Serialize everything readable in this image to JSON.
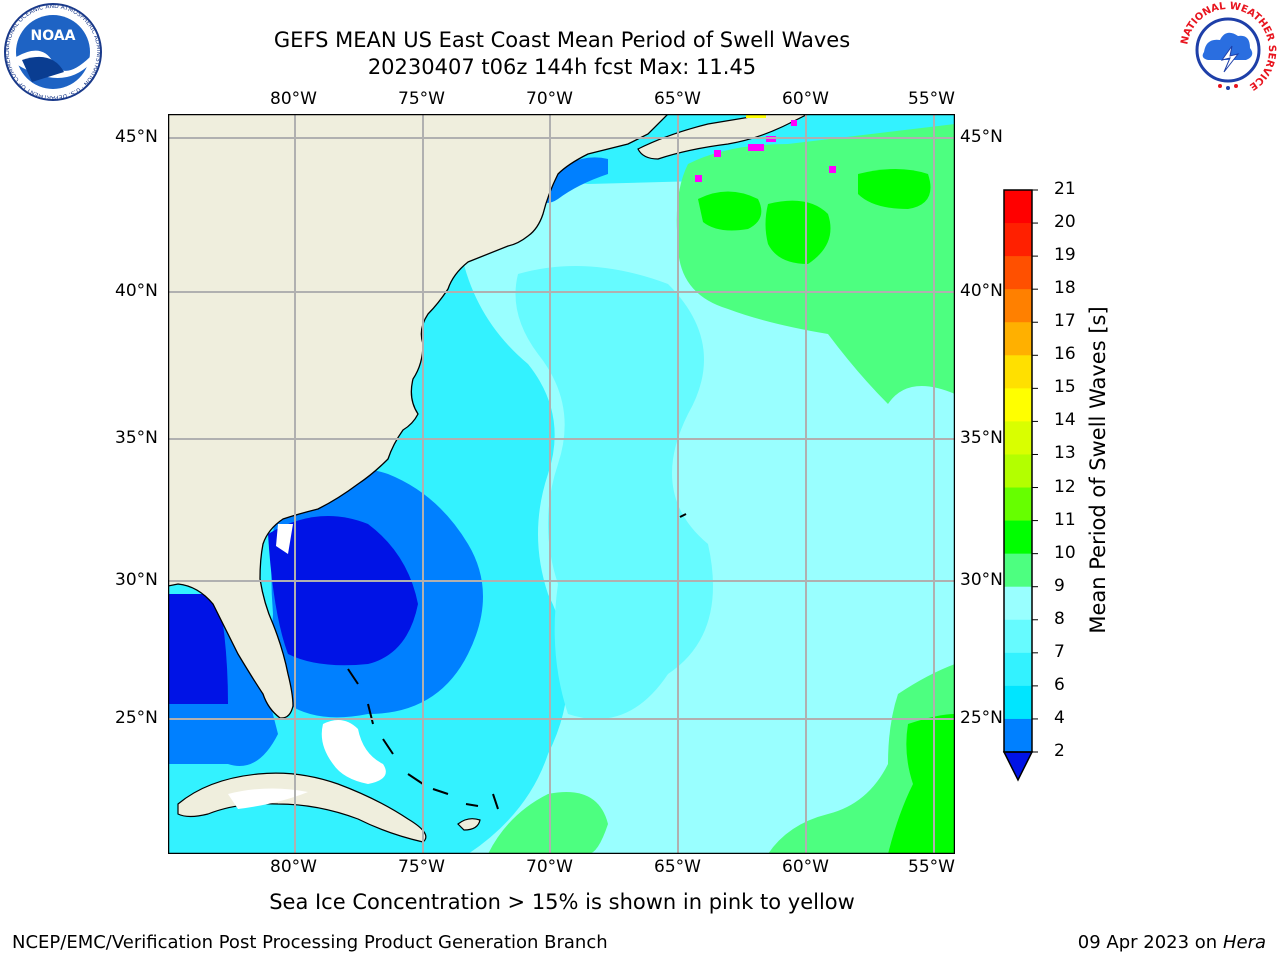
{
  "header": {
    "title_line1": "GEFS MEAN US East Coast Mean Period of Swell Waves",
    "title_line2": "20230407 t06z 144h fcst   Max: 11.45"
  },
  "logos": {
    "noaa_text": "NOAA",
    "noaa_ring_text": "NATIONAL OCEANIC AND ATMOSPHERIC ADMINISTRATION · U.S. DEPARTMENT OF COMMERCE",
    "nws_ring_text": "NATIONAL WEATHER SERVICE"
  },
  "map": {
    "lon_labels": [
      "80°W",
      "75°W",
      "70°W",
      "65°W",
      "60°W",
      "55°W"
    ],
    "lat_labels": [
      "45°N",
      "40°N",
      "35°N",
      "30°N",
      "25°N"
    ],
    "colors": {
      "land": "#efeedd",
      "grid": "#b0b0b0",
      "coast": "#000000",
      "sea_ice": "#ff00ff"
    }
  },
  "colorbar": {
    "title": "Mean Period of Swell Waves [s]",
    "ticks": [
      "2",
      "4",
      "6",
      "7",
      "8",
      "9",
      "10",
      "11",
      "12",
      "13",
      "14",
      "15",
      "16",
      "17",
      "18",
      "19",
      "20",
      "21"
    ],
    "colors": [
      "#0013e6",
      "#0080ff",
      "#00e5ff",
      "#33f2ff",
      "#66fbff",
      "#99ffff",
      "#4dff80",
      "#00ff00",
      "#66ff00",
      "#b3ff00",
      "#d9ff00",
      "#ffff00",
      "#ffe000",
      "#ffb000",
      "#ff8000",
      "#ff5000",
      "#ff2000",
      "#ff0000"
    ]
  },
  "caption": "Sea Ice Concentration > 15% is shown in pink to yellow",
  "footer": {
    "left": "NCEP/EMC/Verification Post Processing Product Generation Branch",
    "right_date": "09 Apr 2023 on ",
    "right_machine": "Hera"
  }
}
